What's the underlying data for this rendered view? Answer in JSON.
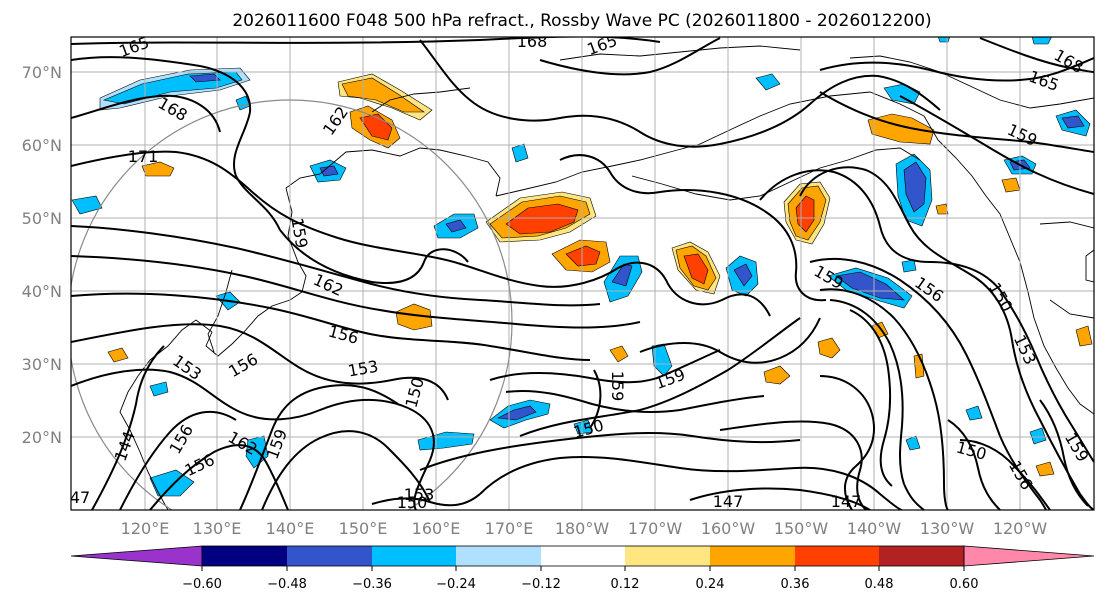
{
  "title": "2026011600 F048 500 hPa refract., Rossby Wave PC (2026011800 - 2026012200)",
  "lat_labels": [
    "70°N",
    "60°N",
    "50°N",
    "40°N",
    "30°N",
    "20°N"
  ],
  "lon_labels": [
    "120°E",
    "130°E",
    "140°E",
    "150°E",
    "160°E",
    "170°E",
    "180°W",
    "170°W",
    "160°W",
    "150°W",
    "140°W",
    "130°W",
    "120°W"
  ],
  "colorbar": {
    "ticks": [
      "−0.60",
      "−0.48",
      "−0.36",
      "−0.24",
      "−0.12",
      "0.12",
      "0.24",
      "0.36",
      "0.48",
      "0.60"
    ],
    "colors": [
      "#9933cc",
      "#000080",
      "#3355cc",
      "#00bfff",
      "#b0e0ff",
      "#ffffff",
      "#ffe680",
      "#ffa500",
      "#ff4000",
      "#b22222",
      "#ff88aa"
    ]
  },
  "contour_labels": [
    {
      "text": "165"
    },
    {
      "text": "168"
    },
    {
      "text": "165"
    },
    {
      "text": "168"
    },
    {
      "text": "165"
    },
    {
      "text": "168"
    },
    {
      "text": "162"
    },
    {
      "text": "171"
    },
    {
      "text": "159"
    },
    {
      "text": "162"
    },
    {
      "text": "156"
    },
    {
      "text": "159"
    },
    {
      "text": "156"
    },
    {
      "text": "150"
    },
    {
      "text": "153"
    },
    {
      "text": "153"
    },
    {
      "text": "156"
    },
    {
      "text": "150"
    },
    {
      "text": "159"
    },
    {
      "text": "159"
    },
    {
      "text": "150"
    },
    {
      "text": "144"
    },
    {
      "text": "162"
    },
    {
      "text": "156"
    },
    {
      "text": "159"
    },
    {
      "text": "156"
    },
    {
      "text": "150"
    },
    {
      "text": "153"
    },
    {
      "text": "159"
    },
    {
      "text": "150"
    },
    {
      "text": "156"
    },
    {
      "text": "147"
    },
    {
      "text": "147"
    },
    {
      "text": "159"
    },
    {
      "text": "47"
    },
    {
      "text": "153"
    }
  ]
}
